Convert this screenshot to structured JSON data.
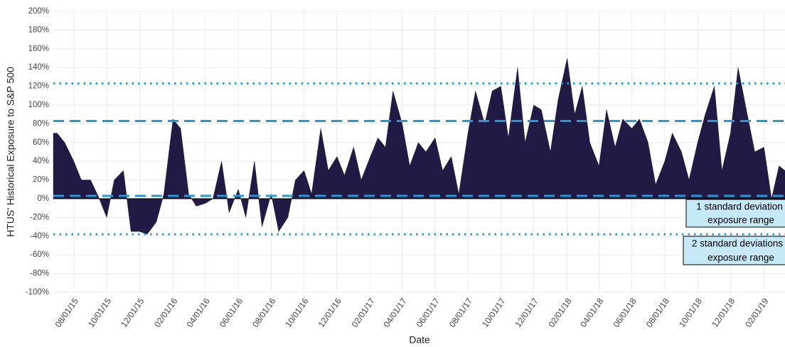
{
  "chart_data": {
    "type": "area",
    "ylabel": "HTUS' Historical Exposure to S&P 500",
    "xlabel": "Date",
    "color": "#211a45",
    "grid": true,
    "x": [
      "2015-06-24",
      "2015-07-01",
      "2015-07-15",
      "2015-08-01",
      "2015-08-15",
      "2015-09-01",
      "2015-09-15",
      "2015-10-01",
      "2015-10-15",
      "2015-11-01",
      "2015-11-15",
      "2015-12-01",
      "2015-12-15",
      "2016-01-01",
      "2016-01-15",
      "2016-02-01",
      "2016-02-15",
      "2016-03-01",
      "2016-03-15",
      "2016-04-01",
      "2016-04-15",
      "2016-05-01",
      "2016-05-15",
      "2016-06-01",
      "2016-06-15",
      "2016-07-01",
      "2016-07-15",
      "2016-08-01",
      "2016-08-15",
      "2016-09-01",
      "2016-09-15",
      "2016-10-01",
      "2016-10-15",
      "2016-11-01",
      "2016-11-15",
      "2016-12-01",
      "2016-12-15",
      "2017-01-01",
      "2017-01-15",
      "2017-02-01",
      "2017-02-15",
      "2017-03-01",
      "2017-03-15",
      "2017-04-01",
      "2017-04-15",
      "2017-05-01",
      "2017-05-15",
      "2017-06-01",
      "2017-06-15",
      "2017-07-01",
      "2017-07-15",
      "2017-08-01",
      "2017-08-15",
      "2017-09-01",
      "2017-09-15",
      "2017-10-01",
      "2017-10-15",
      "2017-11-01",
      "2017-11-15",
      "2017-12-01",
      "2017-12-15",
      "2018-01-01",
      "2018-01-15",
      "2018-02-01",
      "2018-02-15",
      "2018-03-01",
      "2018-03-15",
      "2018-04-01",
      "2018-04-15",
      "2018-05-01",
      "2018-05-15",
      "2018-06-01",
      "2018-06-15",
      "2018-07-01",
      "2018-07-15",
      "2018-08-01",
      "2018-08-15",
      "2018-09-01",
      "2018-09-15",
      "2018-10-01",
      "2018-10-15",
      "2018-11-01",
      "2018-11-15",
      "2018-12-01",
      "2018-12-15",
      "2019-01-01",
      "2019-01-15",
      "2019-02-01",
      "2019-02-15",
      "2019-03-01",
      "2019-03-12"
    ],
    "values": [
      70,
      70,
      60,
      40,
      20,
      20,
      3,
      -20,
      20,
      30,
      -35,
      -35,
      -38,
      -25,
      5,
      85,
      75,
      5,
      -8,
      -5,
      0,
      40,
      -15,
      10,
      -20,
      40,
      -30,
      5,
      -35,
      -20,
      20,
      30,
      5,
      75,
      30,
      45,
      25,
      55,
      20,
      45,
      65,
      55,
      115,
      80,
      35,
      60,
      50,
      65,
      30,
      45,
      5,
      70,
      115,
      80,
      115,
      120,
      65,
      140,
      60,
      100,
      95,
      50,
      105,
      150,
      90,
      120,
      60,
      35,
      95,
      55,
      85,
      75,
      85,
      60,
      15,
      40,
      70,
      50,
      20,
      60,
      90,
      120,
      30,
      70,
      140,
      90,
      50,
      55,
      0,
      35,
      30
    ],
    "xlim": [
      "2015-06-24",
      "2019-03-12"
    ],
    "xticks": [
      {
        "value": "2015-08-01",
        "label": "08/01/15"
      },
      {
        "value": "2015-10-01",
        "label": "10/01/15"
      },
      {
        "value": "2015-12-01",
        "label": "12/01/15"
      },
      {
        "value": "2016-02-01",
        "label": "02/01/16"
      },
      {
        "value": "2016-04-01",
        "label": "04/01/16"
      },
      {
        "value": "2016-06-01",
        "label": "06/01/16"
      },
      {
        "value": "2016-08-01",
        "label": "08/01/16"
      },
      {
        "value": "2016-10-01",
        "label": "10/01/16"
      },
      {
        "value": "2016-12-01",
        "label": "12/01/16"
      },
      {
        "value": "2017-02-01",
        "label": "02/01/17"
      },
      {
        "value": "2017-04-01",
        "label": "04/01/17"
      },
      {
        "value": "2017-06-01",
        "label": "06/01/17"
      },
      {
        "value": "2017-08-01",
        "label": "08/01/17"
      },
      {
        "value": "2017-10-01",
        "label": "10/01/17"
      },
      {
        "value": "2017-12-01",
        "label": "12/01/17"
      },
      {
        "value": "2018-02-01",
        "label": "02/01/18"
      },
      {
        "value": "2018-04-01",
        "label": "04/01/18"
      },
      {
        "value": "2018-06-01",
        "label": "06/01/18"
      },
      {
        "value": "2018-08-01",
        "label": "08/01/18"
      },
      {
        "value": "2018-10-01",
        "label": "10/01/18"
      },
      {
        "value": "2018-12-01",
        "label": "12/01/18"
      },
      {
        "value": "2019-02-01",
        "label": "02/01/19"
      }
    ],
    "ylim": [
      -100,
      200
    ],
    "yticks": [
      {
        "value": -100,
        "label": "-100%"
      },
      {
        "value": -80,
        "label": "-80%"
      },
      {
        "value": -60,
        "label": "-60%"
      },
      {
        "value": -40,
        "label": "-40%"
      },
      {
        "value": -20,
        "label": "-20%"
      },
      {
        "value": 0,
        "label": "0%"
      },
      {
        "value": 20,
        "label": "20%"
      },
      {
        "value": 40,
        "label": "40%"
      },
      {
        "value": 60,
        "label": "60%"
      },
      {
        "value": 80,
        "label": "80%"
      },
      {
        "value": 100,
        "label": "100%"
      },
      {
        "value": 120,
        "label": "120%"
      },
      {
        "value": 140,
        "label": "140%"
      },
      {
        "value": 160,
        "label": "160%"
      },
      {
        "value": 180,
        "label": "180%"
      },
      {
        "value": 200,
        "label": "200%"
      }
    ],
    "hline_color": "#1f9bd7",
    "hlines": [
      {
        "value": 123,
        "style": "dotted"
      },
      {
        "value": 83,
        "style": "dashed"
      },
      {
        "value": 3,
        "style": "dashed"
      },
      {
        "value": -38,
        "style": "dotted"
      }
    ],
    "annotations": [
      {
        "lines": [
          "1 standard deviation",
          "exposure range"
        ]
      },
      {
        "lines": [
          "2 standard deviations",
          "exposure range"
        ]
      }
    ]
  }
}
